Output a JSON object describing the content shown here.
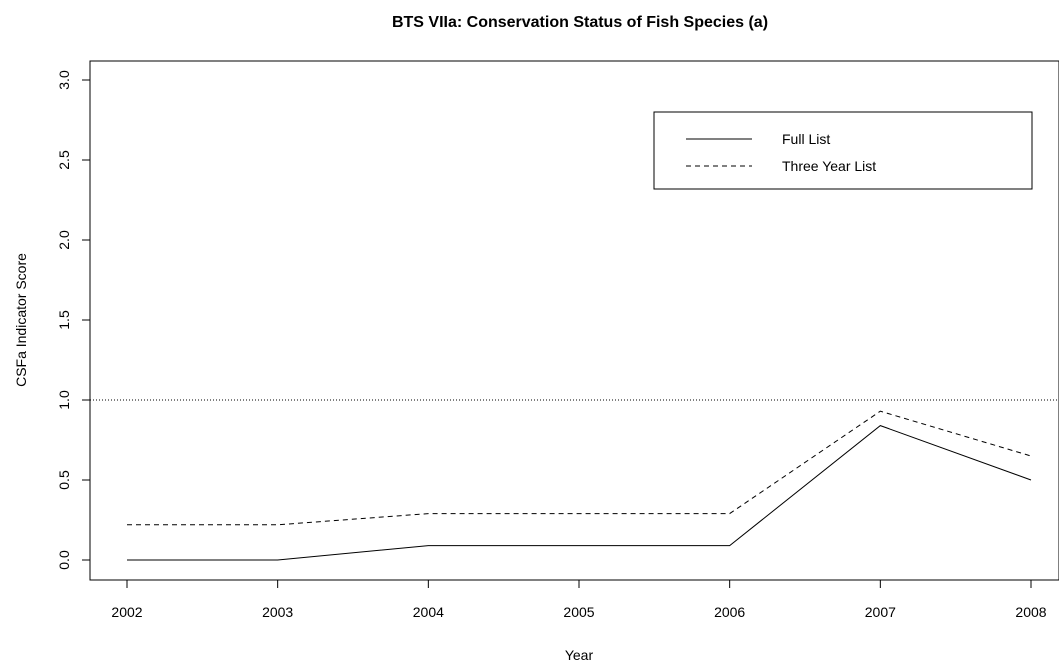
{
  "chart_data": {
    "type": "line",
    "title": "BTS VIIa: Conservation Status of Fish Species (a)",
    "xlabel": "Year",
    "ylabel": "CSFa Indicator Score",
    "x": [
      2002,
      2003,
      2004,
      2005,
      2006,
      2007,
      2008
    ],
    "xlim": [
      2002,
      2008
    ],
    "ylim": [
      0,
      3
    ],
    "yticks": [
      0.0,
      0.5,
      1.0,
      1.5,
      2.0,
      2.5,
      3.0
    ],
    "ytick_labels": [
      "0.0",
      "0.5",
      "1.0",
      "1.5",
      "2.0",
      "2.5",
      "3.0"
    ],
    "grid": false,
    "legend_position": "top-right",
    "series": [
      {
        "name": "Full List",
        "style": "solid",
        "values": [
          0.0,
          0.0,
          0.09,
          0.09,
          0.09,
          0.84,
          0.5
        ]
      },
      {
        "name": "Three Year List",
        "style": "dashed",
        "values": [
          0.22,
          0.22,
          0.29,
          0.29,
          0.29,
          0.93,
          0.65
        ]
      }
    ],
    "reference_line": {
      "y": 1.0,
      "style": "dotted"
    }
  }
}
